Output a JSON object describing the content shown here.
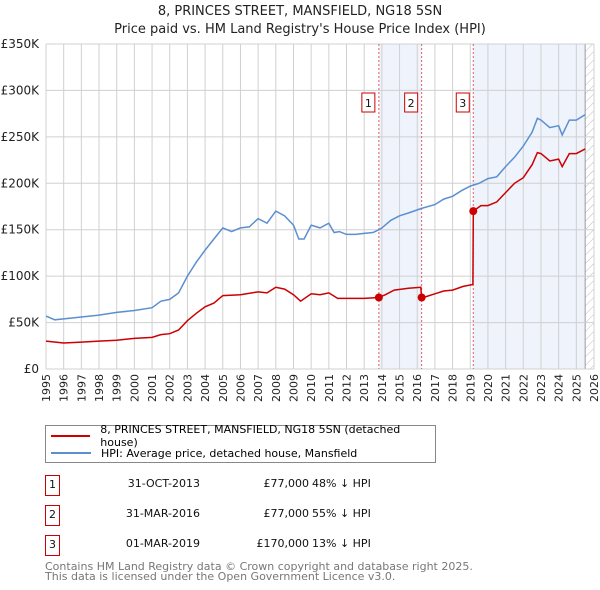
{
  "title_line1": "8, PRINCES STREET, MANSFIELD, NG18 5SN",
  "title_line2": "Price paid vs. HM Land Registry's House Price Index (HPI)",
  "legend": {
    "property": "8, PRINCES STREET, MANSFIELD, NG18 5SN (detached house)",
    "hpi": "HPI: Average price, detached house, Mansfield"
  },
  "sales": [
    {
      "num": "1",
      "date": "31-OCT-2013",
      "price": "£77,000",
      "hpi": "48% ↓ HPI"
    },
    {
      "num": "2",
      "date": "31-MAR-2016",
      "price": "£77,000",
      "hpi": "55% ↓ HPI"
    },
    {
      "num": "3",
      "date": "01-MAR-2019",
      "price": "£170,000",
      "hpi": "13% ↓ HPI"
    }
  ],
  "footer_line1": "Contains HM Land Registry data © Crown copyright and database right 2025.",
  "footer_line2": "This data is licensed under the Open Government Licence v3.0.",
  "colors": {
    "property": "#cc0000",
    "hpi": "#5b8fd0",
    "shade": "#eef3fc"
  },
  "chart_data": {
    "type": "line",
    "xlim": [
      1995,
      2026
    ],
    "ylim": [
      0,
      350000
    ],
    "x_ticks": [
      "1995",
      "1996",
      "1997",
      "1998",
      "1999",
      "2000",
      "2001",
      "2002",
      "2003",
      "2004",
      "2005",
      "2006",
      "2007",
      "2008",
      "2009",
      "2010",
      "2011",
      "2012",
      "2013",
      "2014",
      "2015",
      "2016",
      "2017",
      "2018",
      "2019",
      "2020",
      "2021",
      "2022",
      "2023",
      "2024",
      "2025",
      "2026"
    ],
    "y_ticks": [
      {
        "v": 0,
        "label": "£0"
      },
      {
        "v": 50000,
        "label": "£50K"
      },
      {
        "v": 100000,
        "label": "£100K"
      },
      {
        "v": 150000,
        "label": "£150K"
      },
      {
        "v": 200000,
        "label": "£200K"
      },
      {
        "v": 250000,
        "label": "£250K"
      },
      {
        "v": 300000,
        "label": "£300K"
      },
      {
        "v": 350000,
        "label": "£350K"
      }
    ],
    "grid": true,
    "shaded_ranges": [
      [
        2013.83,
        2016.25
      ],
      [
        2019.17,
        2025.5
      ]
    ],
    "hatched_from": 2025.5,
    "sale_points": [
      {
        "label": "1",
        "x": 2013.83,
        "y": 77000
      },
      {
        "label": "2",
        "x": 2016.25,
        "y": 77000
      },
      {
        "label": "3",
        "x": 2019.17,
        "y": 170000
      }
    ],
    "series": [
      {
        "name": "8, PRINCES STREET, MANSFIELD, NG18 5SN (detached house)",
        "key": "property",
        "points": [
          [
            1995,
            30
          ],
          [
            1996,
            28
          ],
          [
            1997,
            29
          ],
          [
            1998,
            30
          ],
          [
            1999,
            31
          ],
          [
            2000,
            33
          ],
          [
            2001,
            34
          ],
          [
            2001.5,
            37
          ],
          [
            2002,
            38
          ],
          [
            2002.5,
            42
          ],
          [
            2003,
            52
          ],
          [
            2003.5,
            60
          ],
          [
            2004,
            67
          ],
          [
            2004.5,
            71
          ],
          [
            2005,
            79
          ],
          [
            2006,
            80
          ],
          [
            2007,
            83
          ],
          [
            2007.5,
            82
          ],
          [
            2008,
            88
          ],
          [
            2008.5,
            86
          ],
          [
            2009,
            80
          ],
          [
            2009.4,
            73
          ],
          [
            2010,
            81
          ],
          [
            2010.5,
            80
          ],
          [
            2011,
            82
          ],
          [
            2011.5,
            76
          ],
          [
            2012,
            76
          ],
          [
            2013,
            76
          ],
          [
            2013.83,
            77
          ],
          [
            2014.2,
            80
          ],
          [
            2014.7,
            85
          ],
          [
            2015.5,
            87
          ],
          [
            2016.2,
            88
          ],
          [
            2016.25,
            77
          ],
          [
            2016.5,
            78
          ],
          [
            2017,
            81
          ],
          [
            2017.5,
            84
          ],
          [
            2018,
            85
          ],
          [
            2018.6,
            89
          ],
          [
            2019.15,
            91
          ],
          [
            2019.17,
            170
          ],
          [
            2019.6,
            176
          ],
          [
            2020,
            176
          ],
          [
            2020.5,
            180
          ],
          [
            2021,
            190
          ],
          [
            2021.5,
            200
          ],
          [
            2022,
            206
          ],
          [
            2022.5,
            220
          ],
          [
            2022.8,
            233
          ],
          [
            2023,
            232
          ],
          [
            2023.5,
            224
          ],
          [
            2024,
            226
          ],
          [
            2024.2,
            218
          ],
          [
            2024.6,
            232
          ],
          [
            2025,
            232
          ],
          [
            2025.5,
            237
          ]
        ]
      },
      {
        "name": "HPI: Average price, detached house, Mansfield",
        "key": "hpi",
        "points": [
          [
            1995,
            57
          ],
          [
            1995.5,
            53
          ],
          [
            1996,
            54
          ],
          [
            1997,
            56
          ],
          [
            1998,
            58
          ],
          [
            1999,
            61
          ],
          [
            2000,
            63
          ],
          [
            2001,
            66
          ],
          [
            2001.5,
            73
          ],
          [
            2002,
            75
          ],
          [
            2002.5,
            82
          ],
          [
            2003,
            100
          ],
          [
            2003.5,
            115
          ],
          [
            2004,
            128
          ],
          [
            2004.5,
            140
          ],
          [
            2005,
            152
          ],
          [
            2005.5,
            148
          ],
          [
            2006,
            152
          ],
          [
            2006.5,
            153
          ],
          [
            2007,
            162
          ],
          [
            2007.5,
            157
          ],
          [
            2008,
            170
          ],
          [
            2008.5,
            165
          ],
          [
            2009,
            155
          ],
          [
            2009.3,
            140
          ],
          [
            2009.6,
            140
          ],
          [
            2010,
            155
          ],
          [
            2010.5,
            152
          ],
          [
            2011,
            157
          ],
          [
            2011.3,
            147
          ],
          [
            2011.6,
            148
          ],
          [
            2012,
            145
          ],
          [
            2012.5,
            145
          ],
          [
            2013,
            146
          ],
          [
            2013.5,
            147
          ],
          [
            2013.83,
            150
          ],
          [
            2014,
            152
          ],
          [
            2014.5,
            160
          ],
          [
            2015,
            165
          ],
          [
            2015.5,
            168
          ],
          [
            2016.25,
            173
          ],
          [
            2017,
            177
          ],
          [
            2017.5,
            183
          ],
          [
            2018,
            186
          ],
          [
            2018.5,
            192
          ],
          [
            2019,
            197
          ],
          [
            2019.5,
            200
          ],
          [
            2020,
            205
          ],
          [
            2020.5,
            207
          ],
          [
            2021,
            218
          ],
          [
            2021.5,
            228
          ],
          [
            2022,
            240
          ],
          [
            2022.5,
            255
          ],
          [
            2022.8,
            270
          ],
          [
            2023,
            268
          ],
          [
            2023.5,
            260
          ],
          [
            2024,
            262
          ],
          [
            2024.2,
            252
          ],
          [
            2024.6,
            268
          ],
          [
            2025,
            268
          ],
          [
            2025.5,
            274
          ]
        ]
      }
    ]
  }
}
